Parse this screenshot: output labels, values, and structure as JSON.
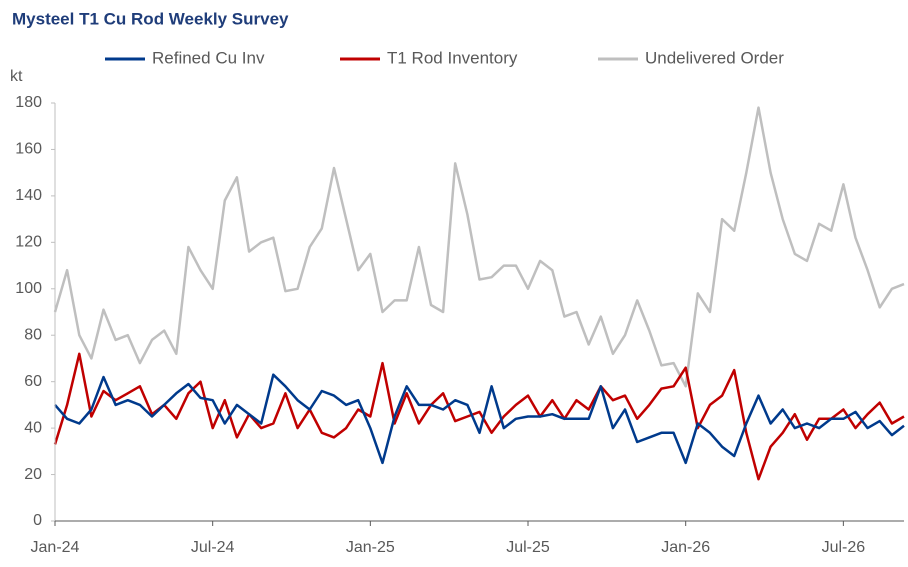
{
  "chart_data": {
    "type": "line",
    "title": "Mysteel T1 Cu Rod Weekly Survey",
    "y_label": "kt",
    "categories": [
      "Jan-24",
      null,
      null,
      null,
      null,
      null,
      null,
      null,
      null,
      null,
      null,
      null,
      null,
      "Jul-24",
      null,
      null,
      null,
      null,
      null,
      null,
      null,
      null,
      null,
      null,
      null,
      null,
      "Jan-25",
      null,
      null,
      null,
      null,
      null,
      null,
      null,
      null,
      null,
      null,
      null,
      null,
      "Jul-25",
      null,
      null,
      null,
      null,
      null,
      null,
      null,
      null,
      null,
      null,
      null,
      null,
      "Jan-26",
      null,
      null,
      null,
      null,
      null,
      null,
      null,
      null,
      null,
      null,
      null,
      null,
      "Jul-26",
      null,
      null,
      null,
      null,
      null
    ],
    "series": [
      {
        "name": "Refined Cu Inv",
        "color": "#003a8c",
        "values": [
          50,
          44,
          42,
          48,
          62,
          50,
          52,
          50,
          45,
          50,
          55,
          59,
          53,
          52,
          42,
          50,
          46,
          42,
          63,
          58,
          52,
          48,
          56,
          54,
          50,
          52,
          40,
          25,
          45,
          58,
          50,
          50,
          48,
          52,
          50,
          38,
          58,
          40,
          44,
          45,
          45,
          46,
          44,
          44,
          44,
          58,
          40,
          48,
          34,
          36,
          38,
          38,
          25,
          42,
          38,
          32,
          28,
          42,
          54,
          42,
          48,
          40,
          42,
          40,
          44,
          44,
          47,
          40,
          43,
          37,
          41
        ]
      },
      {
        "name": "T1 Rod Inventory",
        "color": "#c00000",
        "values": [
          33,
          50,
          72,
          45,
          56,
          52,
          55,
          58,
          46,
          50,
          44,
          55,
          60,
          40,
          52,
          36,
          46,
          40,
          42,
          55,
          40,
          48,
          38,
          36,
          40,
          48,
          45,
          68,
          42,
          55,
          42,
          50,
          55,
          43,
          45,
          47,
          38,
          45,
          50,
          54,
          45,
          52,
          44,
          52,
          48,
          58,
          52,
          54,
          44,
          50,
          57,
          58,
          66,
          40,
          50,
          54,
          65,
          38,
          18,
          32,
          38,
          46,
          35,
          44,
          44,
          48,
          40,
          46,
          51,
          42,
          45
        ]
      },
      {
        "name": "Undelivered Order",
        "color": "#bfbfbf",
        "values": [
          90,
          108,
          80,
          70,
          91,
          78,
          80,
          68,
          78,
          82,
          72,
          118,
          108,
          100,
          138,
          148,
          116,
          120,
          122,
          99,
          100,
          118,
          126,
          152,
          130,
          108,
          115,
          90,
          95,
          95,
          118,
          93,
          90,
          154,
          132,
          104,
          105,
          110,
          110,
          100,
          112,
          108,
          88,
          90,
          76,
          88,
          72,
          80,
          95,
          82,
          67,
          68,
          58,
          98,
          90,
          130,
          125,
          150,
          178,
          150,
          130,
          115,
          112,
          128,
          125,
          145,
          122,
          108,
          92,
          100,
          102
        ]
      }
    ],
    "ylim": [
      0,
      180
    ],
    "yticks": [
      0,
      20,
      40,
      60,
      80,
      100,
      120,
      140,
      160,
      180
    ],
    "grid": false,
    "legend": "top"
  }
}
